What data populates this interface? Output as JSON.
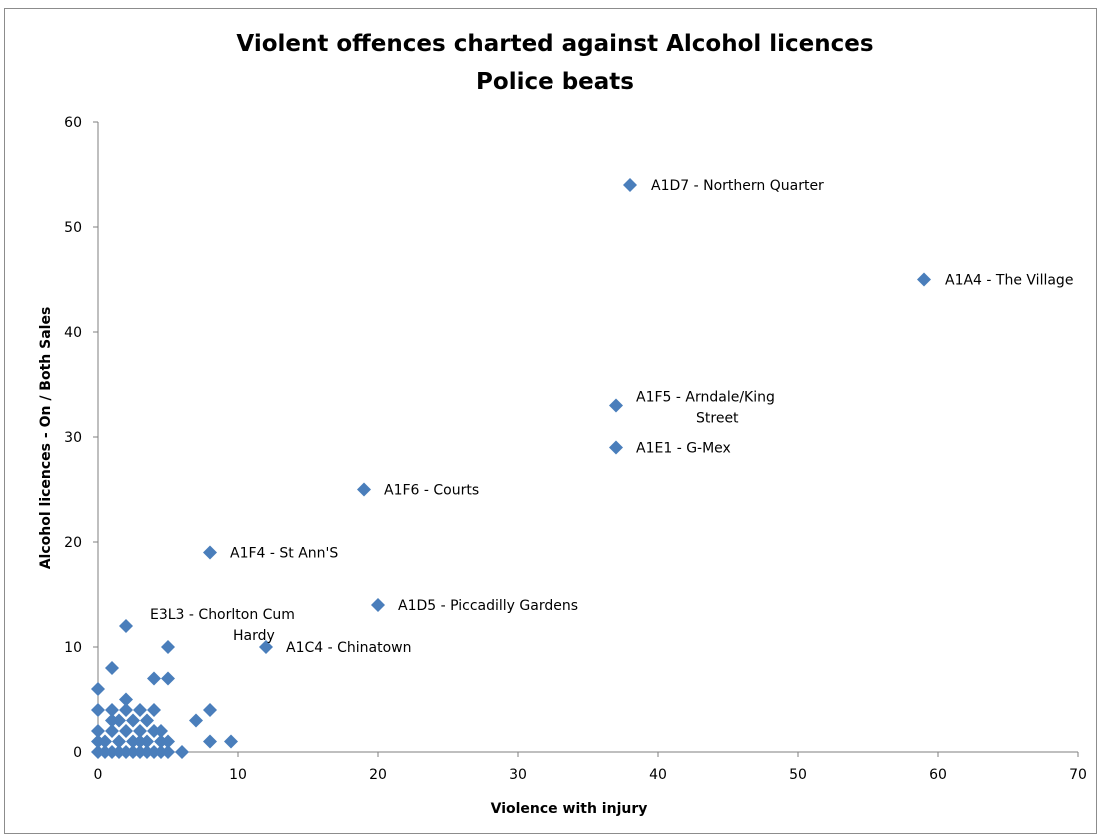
{
  "chart_data": {
    "type": "scatter",
    "title": "Violent offences charted against Alcohol licences",
    "subtitle": "Police beats",
    "xlabel": "Violence with injury",
    "ylabel": "Alcohol licences - On / Both Sales",
    "xlim": [
      0,
      70
    ],
    "ylim": [
      0,
      60
    ],
    "xticks": [
      "0",
      "10",
      "20",
      "30",
      "40",
      "50",
      "60",
      "70"
    ],
    "yticks": [
      "0",
      "10",
      "20",
      "30",
      "40",
      "50",
      "60"
    ],
    "grid": false,
    "legend": "none",
    "marker": "diamond",
    "marker_color": "#4a7ebb",
    "series": [
      {
        "points": [
          {
            "x": 38,
            "y": 54,
            "label": "A1D7 - Northern Quarter"
          },
          {
            "x": 59,
            "y": 45,
            "label": "A1A4 - The Village"
          },
          {
            "x": 37,
            "y": 33,
            "label": "A1F5 - Arndale/King Street"
          },
          {
            "x": 37,
            "y": 29,
            "label": "A1E1 - G-Mex"
          },
          {
            "x": 19,
            "y": 25,
            "label": "A1F6 - Courts"
          },
          {
            "x": 8,
            "y": 19,
            "label": "A1F4 - St Ann'S"
          },
          {
            "x": 20,
            "y": 14,
            "label": "A1D5 - Piccadilly Gardens"
          },
          {
            "x": 2,
            "y": 12,
            "label": "E3L3 - Chorlton Cum Hardy"
          },
          {
            "x": 12,
            "y": 10,
            "label": "A1C4 - Chinatown"
          },
          {
            "x": 5,
            "y": 10
          },
          {
            "x": 1,
            "y": 8
          },
          {
            "x": 4,
            "y": 7
          },
          {
            "x": 5,
            "y": 7
          },
          {
            "x": 0,
            "y": 6
          },
          {
            "x": 2,
            "y": 5
          },
          {
            "x": 0,
            "y": 4
          },
          {
            "x": 1,
            "y": 4
          },
          {
            "x": 2,
            "y": 4
          },
          {
            "x": 3,
            "y": 4
          },
          {
            "x": 4,
            "y": 4
          },
          {
            "x": 8,
            "y": 4
          },
          {
            "x": 1,
            "y": 3
          },
          {
            "x": 1.5,
            "y": 3
          },
          {
            "x": 2.5,
            "y": 3
          },
          {
            "x": 3.5,
            "y": 3
          },
          {
            "x": 7,
            "y": 3
          },
          {
            "x": 0,
            "y": 2
          },
          {
            "x": 1,
            "y": 2
          },
          {
            "x": 2,
            "y": 2
          },
          {
            "x": 3,
            "y": 2
          },
          {
            "x": 4,
            "y": 2
          },
          {
            "x": 4.5,
            "y": 2
          },
          {
            "x": 0,
            "y": 1
          },
          {
            "x": 0.5,
            "y": 1
          },
          {
            "x": 1.5,
            "y": 1
          },
          {
            "x": 2.5,
            "y": 1
          },
          {
            "x": 3,
            "y": 1
          },
          {
            "x": 3.5,
            "y": 1
          },
          {
            "x": 4.5,
            "y": 1
          },
          {
            "x": 5,
            "y": 1
          },
          {
            "x": 8,
            "y": 1
          },
          {
            "x": 9.5,
            "y": 1
          },
          {
            "x": 0,
            "y": 0
          },
          {
            "x": 0.5,
            "y": 0
          },
          {
            "x": 1,
            "y": 0
          },
          {
            "x": 1.5,
            "y": 0
          },
          {
            "x": 2,
            "y": 0
          },
          {
            "x": 2.5,
            "y": 0
          },
          {
            "x": 3,
            "y": 0
          },
          {
            "x": 3.5,
            "y": 0
          },
          {
            "x": 4,
            "y": 0
          },
          {
            "x": 4.5,
            "y": 0
          },
          {
            "x": 5,
            "y": 0
          },
          {
            "x": 6,
            "y": 0
          }
        ]
      }
    ]
  }
}
